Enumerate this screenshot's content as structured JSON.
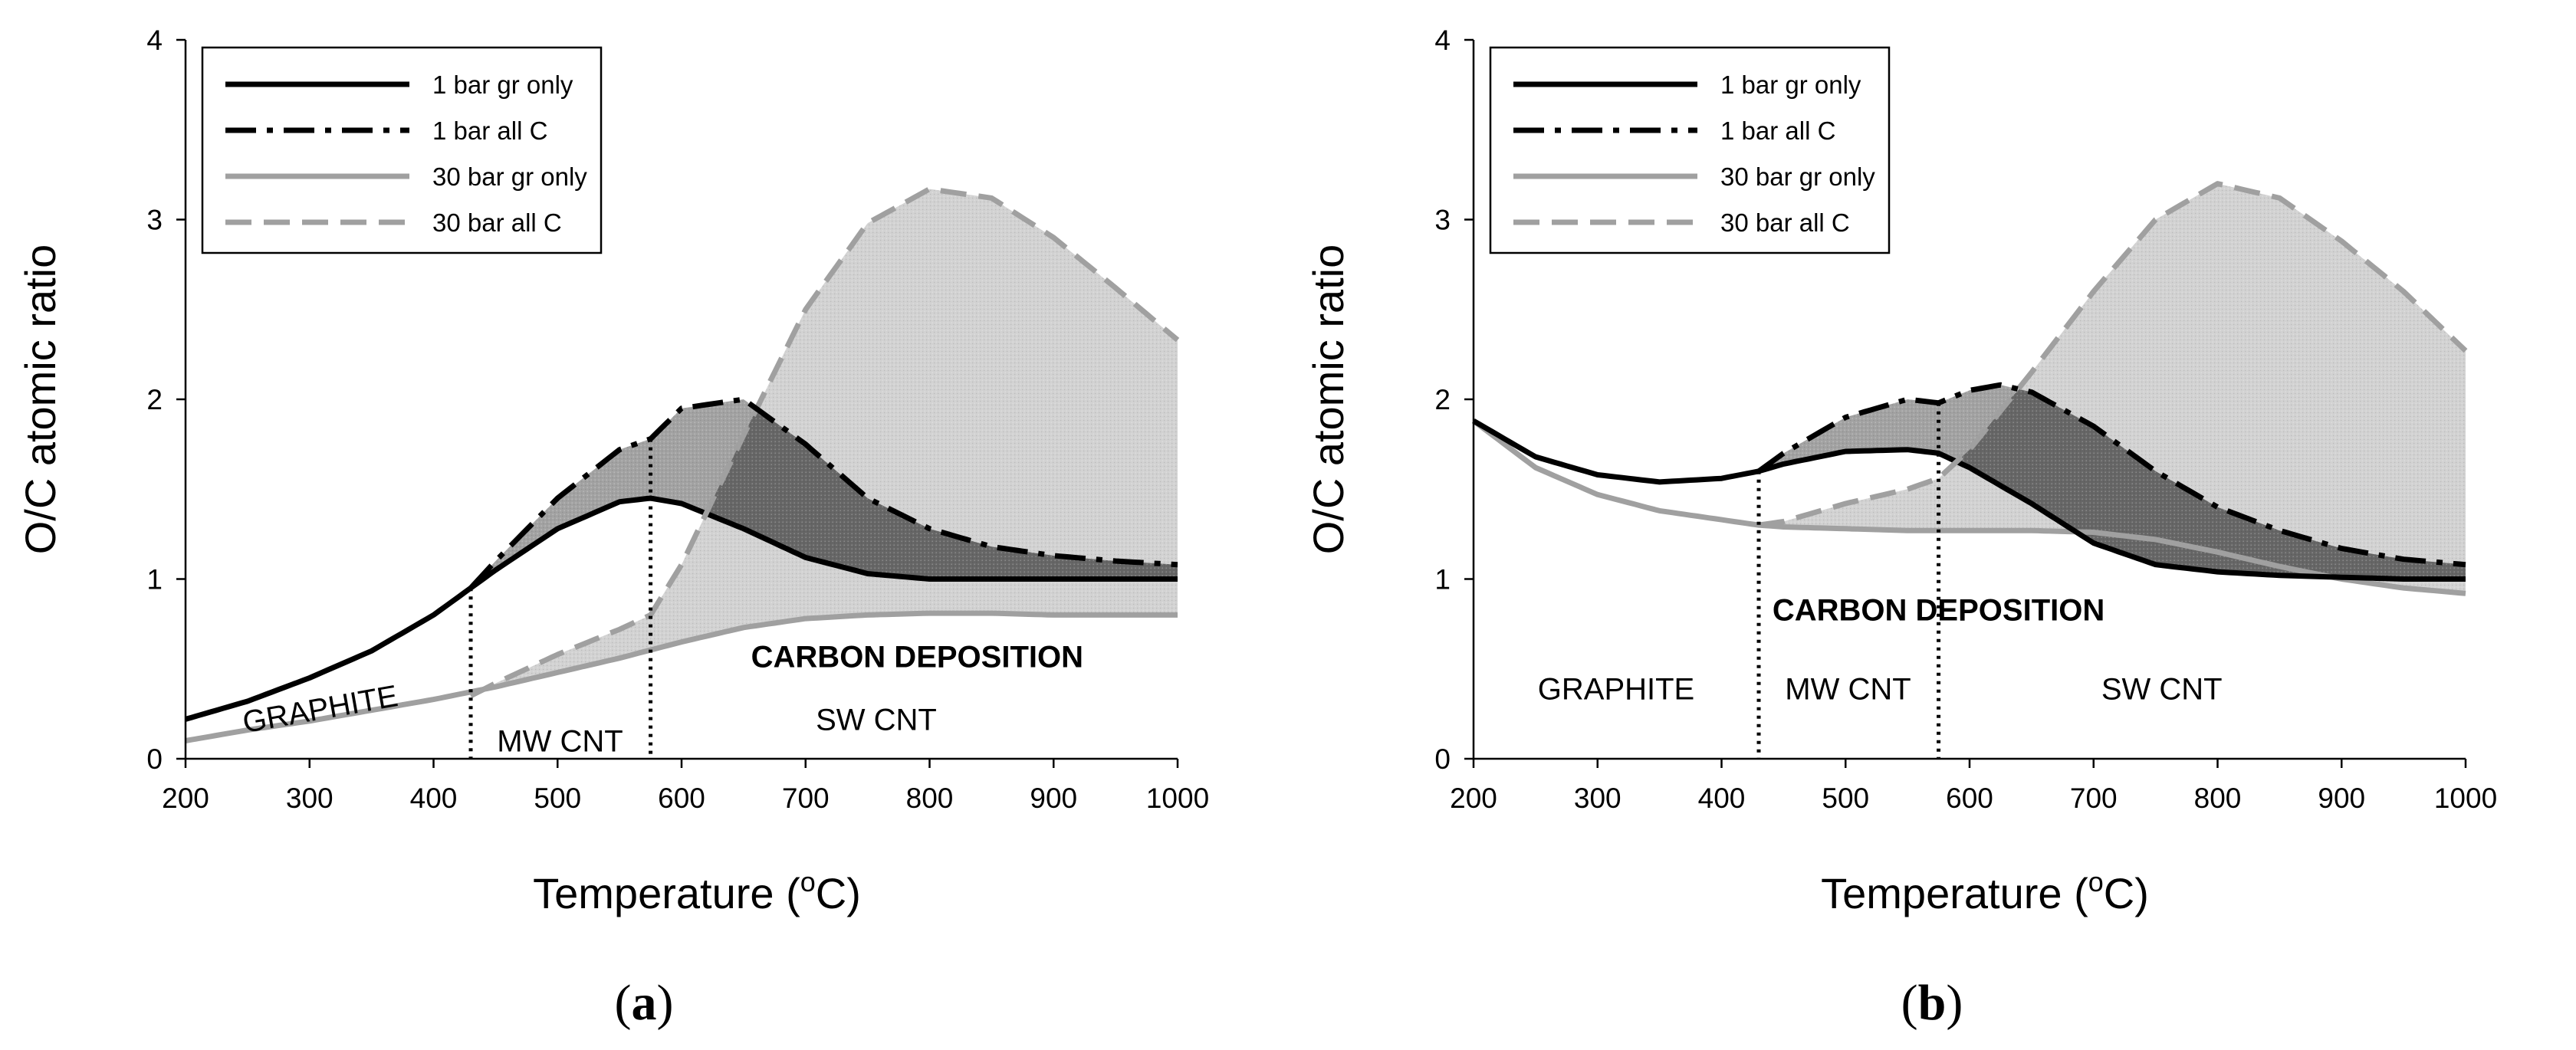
{
  "chart_data": [
    {
      "type": "line",
      "panel_label": {
        "open": "(",
        "letter": "a",
        "close": ")"
      },
      "title": "",
      "xlabel": "Temperature (°C)",
      "xlabel_text": "Temperature (",
      "xlabel_sup": "o",
      "xlabel_unit": "C)",
      "ylabel": "O/C  atomic ratio",
      "xlim": [
        200,
        1000
      ],
      "ylim": [
        0,
        4
      ],
      "xticks": [
        "200",
        "300",
        "400",
        "500",
        "600",
        "700",
        "800",
        "900",
        "1000"
      ],
      "yticks": [
        "0",
        "1",
        "2",
        "3",
        "4"
      ],
      "grid": false,
      "legend_position": "top-left",
      "series": [
        {
          "name": "1 bar gr only",
          "color": "#000000",
          "dash": "solid",
          "x": [
            200,
            250,
            300,
            350,
            400,
            430,
            450,
            500,
            550,
            575,
            600,
            650,
            700,
            750,
            800,
            850,
            900,
            950,
            1000
          ],
          "y": [
            0.22,
            0.32,
            0.45,
            0.6,
            0.8,
            0.95,
            1.05,
            1.28,
            1.43,
            1.45,
            1.42,
            1.28,
            1.12,
            1.03,
            1.0,
            1.0,
            1.0,
            1.0,
            1.0
          ]
        },
        {
          "name": "1 bar all C",
          "color": "#000000",
          "dash": "dashdot",
          "x": [
            430,
            450,
            500,
            550,
            575,
            600,
            650,
            700,
            750,
            800,
            850,
            900,
            950,
            1000
          ],
          "y": [
            0.95,
            1.1,
            1.45,
            1.72,
            1.78,
            1.95,
            2.0,
            1.75,
            1.45,
            1.28,
            1.18,
            1.13,
            1.1,
            1.08
          ]
        },
        {
          "name": "30 bar gr only",
          "color": "#a0a0a0",
          "dash": "solid",
          "x": [
            200,
            250,
            300,
            350,
            400,
            450,
            500,
            550,
            600,
            650,
            700,
            750,
            800,
            850,
            900,
            950,
            1000
          ],
          "y": [
            0.1,
            0.16,
            0.21,
            0.27,
            0.33,
            0.4,
            0.48,
            0.56,
            0.65,
            0.73,
            0.78,
            0.8,
            0.81,
            0.81,
            0.8,
            0.8,
            0.8
          ]
        },
        {
          "name": "30 bar all C",
          "color": "#a0a0a0",
          "dash": "dash",
          "x": [
            430,
            450,
            500,
            550,
            575,
            600,
            650,
            700,
            750,
            800,
            850,
            900,
            950,
            1000
          ],
          "y": [
            0.35,
            0.42,
            0.58,
            0.72,
            0.8,
            1.08,
            1.8,
            2.5,
            2.98,
            3.17,
            3.12,
            2.9,
            2.62,
            2.33
          ]
        }
      ],
      "vlines": [
        430,
        575
      ],
      "labels": {
        "graphite": "GRAPHITE",
        "mwcnt": "MW CNT",
        "swcnt": "SW CNT",
        "deposition": "CARBON  DEPOSITION"
      }
    },
    {
      "type": "line",
      "panel_label": {
        "open": "(",
        "letter": "b",
        "close": ")"
      },
      "title": "",
      "xlabel": "Temperature (°C)",
      "xlabel_text": "Temperature (",
      "xlabel_sup": "o",
      "xlabel_unit": "C)",
      "ylabel": "O/C  atomic ratio",
      "xlim": [
        200,
        1000
      ],
      "ylim": [
        0,
        4
      ],
      "xticks": [
        "200",
        "300",
        "400",
        "500",
        "600",
        "700",
        "800",
        "900",
        "1000"
      ],
      "yticks": [
        "0",
        "1",
        "2",
        "3",
        "4"
      ],
      "grid": false,
      "legend_position": "top-left",
      "series": [
        {
          "name": "1 bar gr only",
          "color": "#000000",
          "dash": "solid",
          "x": [
            200,
            250,
            300,
            350,
            400,
            430,
            450,
            500,
            550,
            575,
            600,
            650,
            700,
            750,
            800,
            850,
            900,
            950,
            1000
          ],
          "y": [
            1.88,
            1.68,
            1.58,
            1.54,
            1.56,
            1.6,
            1.64,
            1.71,
            1.72,
            1.7,
            1.62,
            1.42,
            1.2,
            1.08,
            1.04,
            1.02,
            1.01,
            1.0,
            1.0
          ]
        },
        {
          "name": "1 bar all C",
          "color": "#000000",
          "dash": "dashdot",
          "x": [
            430,
            450,
            500,
            550,
            575,
            600,
            625,
            650,
            700,
            750,
            800,
            850,
            900,
            950,
            1000
          ],
          "y": [
            1.6,
            1.7,
            1.9,
            2.0,
            1.98,
            2.05,
            2.08,
            2.04,
            1.85,
            1.6,
            1.4,
            1.27,
            1.17,
            1.11,
            1.08
          ]
        },
        {
          "name": "30 bar gr only",
          "color": "#a0a0a0",
          "dash": "solid",
          "x": [
            200,
            250,
            300,
            350,
            400,
            430,
            450,
            500,
            550,
            600,
            650,
            700,
            750,
            800,
            850,
            900,
            950,
            1000
          ],
          "y": [
            1.88,
            1.62,
            1.47,
            1.38,
            1.33,
            1.3,
            1.29,
            1.28,
            1.27,
            1.27,
            1.27,
            1.26,
            1.22,
            1.15,
            1.07,
            1.0,
            0.95,
            0.92
          ]
        },
        {
          "name": "30 bar all C",
          "color": "#a0a0a0",
          "dash": "dash",
          "x": [
            430,
            450,
            500,
            550,
            575,
            600,
            650,
            700,
            750,
            800,
            850,
            900,
            950,
            1000
          ],
          "y": [
            1.3,
            1.32,
            1.42,
            1.5,
            1.56,
            1.72,
            2.15,
            2.6,
            3.0,
            3.2,
            3.12,
            2.88,
            2.6,
            2.27
          ]
        }
      ],
      "vlines": [
        430,
        575
      ],
      "labels": {
        "graphite": "GRAPHITE",
        "mwcnt": "MW CNT",
        "swcnt": "SW CNT",
        "deposition": "CARBON  DEPOSITION"
      }
    }
  ]
}
